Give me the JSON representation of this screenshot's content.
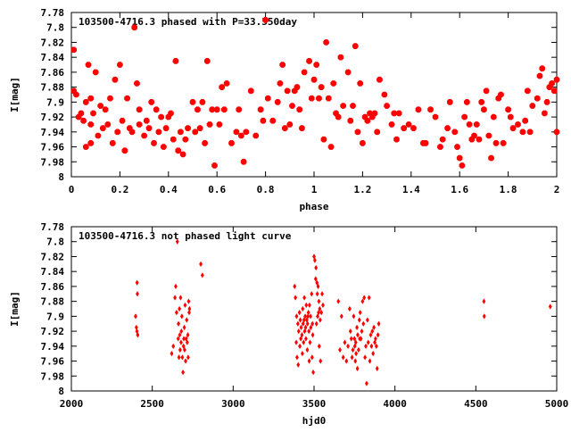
{
  "chart_data": [
    {
      "type": "scatter",
      "title": "103500-4716.3 phased with P=33.550day",
      "xlabel": "phase",
      "ylabel": "I[mag]",
      "xlim": [
        0,
        2
      ],
      "ylim": [
        8.0,
        7.78
      ],
      "y_inverted": true,
      "xticks": [
        "0",
        "0.2",
        "0.4",
        "0.6",
        "0.8",
        "1",
        "1.2",
        "1.4",
        "1.6",
        "1.8",
        "2"
      ],
      "yticks": [
        "7.78",
        "7.8",
        "7.82",
        "7.84",
        "7.86",
        "7.88",
        "7.9",
        "7.92",
        "7.94",
        "7.96",
        "7.98",
        "8"
      ],
      "marker_color": "#ff0000",
      "points": [
        [
          0.01,
          7.83
        ],
        [
          0.01,
          7.885
        ],
        [
          0.02,
          7.89
        ],
        [
          0.03,
          7.92
        ],
        [
          0.04,
          7.915
        ],
        [
          0.05,
          7.925
        ],
        [
          0.06,
          7.9
        ],
        [
          0.06,
          7.96
        ],
        [
          0.07,
          7.85
        ],
        [
          0.08,
          7.895
        ],
        [
          0.08,
          7.93
        ],
        [
          0.08,
          7.955
        ],
        [
          0.09,
          7.915
        ],
        [
          0.1,
          7.86
        ],
        [
          0.11,
          7.945
        ],
        [
          0.12,
          7.905
        ],
        [
          0.13,
          7.935
        ],
        [
          0.14,
          7.91
        ],
        [
          0.15,
          7.93
        ],
        [
          0.16,
          7.895
        ],
        [
          0.17,
          7.955
        ],
        [
          0.18,
          7.87
        ],
        [
          0.19,
          7.94
        ],
        [
          0.2,
          7.85
        ],
        [
          0.21,
          7.925
        ],
        [
          0.22,
          7.965
        ],
        [
          0.23,
          7.895
        ],
        [
          0.24,
          7.935
        ],
        [
          0.25,
          7.94
        ],
        [
          0.26,
          7.8
        ],
        [
          0.27,
          7.875
        ],
        [
          0.28,
          7.93
        ],
        [
          0.28,
          7.91
        ],
        [
          0.3,
          7.945
        ],
        [
          0.31,
          7.925
        ],
        [
          0.32,
          7.935
        ],
        [
          0.33,
          7.9
        ],
        [
          0.34,
          7.955
        ],
        [
          0.35,
          7.91
        ],
        [
          0.36,
          7.94
        ],
        [
          0.37,
          7.92
        ],
        [
          0.38,
          7.96
        ],
        [
          0.39,
          7.935
        ],
        [
          0.4,
          7.92
        ],
        [
          0.41,
          7.915
        ],
        [
          0.42,
          7.95
        ],
        [
          0.43,
          7.845
        ],
        [
          0.44,
          7.965
        ],
        [
          0.45,
          7.94
        ],
        [
          0.46,
          7.97
        ],
        [
          0.47,
          7.95
        ],
        [
          0.48,
          7.935
        ],
        [
          0.5,
          7.9
        ],
        [
          0.51,
          7.94
        ],
        [
          0.52,
          7.91
        ],
        [
          0.53,
          7.935
        ],
        [
          0.54,
          7.9
        ],
        [
          0.55,
          7.955
        ],
        [
          0.56,
          7.845
        ],
        [
          0.57,
          7.93
        ],
        [
          0.58,
          7.91
        ],
        [
          0.59,
          7.985
        ],
        [
          0.6,
          7.91
        ],
        [
          0.61,
          7.93
        ],
        [
          0.62,
          7.88
        ],
        [
          0.63,
          7.91
        ],
        [
          0.64,
          7.875
        ],
        [
          0.66,
          7.955
        ],
        [
          0.68,
          7.94
        ],
        [
          0.69,
          7.91
        ],
        [
          0.7,
          7.945
        ],
        [
          0.71,
          7.98
        ],
        [
          0.72,
          7.94
        ],
        [
          0.74,
          7.885
        ],
        [
          0.76,
          7.945
        ],
        [
          0.78,
          7.91
        ],
        [
          0.79,
          7.925
        ],
        [
          0.8,
          7.79
        ],
        [
          0.81,
          7.895
        ],
        [
          0.83,
          7.925
        ],
        [
          0.85,
          7.9
        ],
        [
          0.86,
          7.875
        ],
        [
          0.87,
          7.85
        ],
        [
          0.88,
          7.935
        ],
        [
          0.89,
          7.885
        ],
        [
          0.9,
          7.93
        ],
        [
          0.91,
          7.905
        ],
        [
          0.92,
          7.885
        ],
        [
          0.93,
          7.88
        ],
        [
          0.94,
          7.91
        ],
        [
          0.95,
          7.935
        ],
        [
          0.96,
          7.86
        ],
        [
          0.98,
          7.845
        ],
        [
          0.99,
          7.895
        ],
        [
          1.0,
          7.87
        ],
        [
          1.01,
          7.85
        ],
        [
          1.02,
          7.895
        ],
        [
          1.03,
          7.88
        ],
        [
          1.04,
          7.95
        ],
        [
          1.05,
          7.82
        ],
        [
          1.06,
          7.895
        ],
        [
          1.07,
          7.96
        ],
        [
          1.08,
          7.875
        ],
        [
          1.09,
          7.915
        ],
        [
          1.1,
          7.92
        ],
        [
          1.11,
          7.84
        ],
        [
          1.12,
          7.905
        ],
        [
          1.14,
          7.86
        ],
        [
          1.15,
          7.925
        ],
        [
          1.16,
          7.905
        ],
        [
          1.17,
          7.825
        ],
        [
          1.18,
          7.94
        ],
        [
          1.19,
          7.875
        ],
        [
          1.2,
          7.955
        ],
        [
          1.21,
          7.92
        ],
        [
          1.22,
          7.925
        ],
        [
          1.23,
          7.915
        ],
        [
          1.24,
          7.92
        ],
        [
          1.25,
          7.915
        ],
        [
          1.26,
          7.94
        ],
        [
          1.27,
          7.87
        ],
        [
          1.29,
          7.89
        ],
        [
          1.3,
          7.905
        ],
        [
          1.32,
          7.93
        ],
        [
          1.33,
          7.915
        ],
        [
          1.34,
          7.95
        ],
        [
          1.35,
          7.915
        ],
        [
          1.37,
          7.935
        ],
        [
          1.39,
          7.93
        ],
        [
          1.41,
          7.935
        ],
        [
          1.43,
          7.91
        ],
        [
          1.45,
          7.955
        ],
        [
          1.46,
          7.955
        ],
        [
          1.48,
          7.91
        ],
        [
          1.5,
          7.92
        ],
        [
          1.52,
          7.96
        ],
        [
          1.53,
          7.95
        ],
        [
          1.55,
          7.935
        ],
        [
          1.56,
          7.9
        ],
        [
          1.58,
          7.94
        ],
        [
          1.59,
          7.96
        ],
        [
          1.6,
          7.975
        ],
        [
          1.61,
          7.985
        ],
        [
          1.62,
          7.92
        ],
        [
          1.63,
          7.9
        ],
        [
          1.64,
          7.93
        ],
        [
          1.65,
          7.95
        ],
        [
          1.66,
          7.945
        ],
        [
          1.67,
          7.93
        ],
        [
          1.68,
          7.95
        ],
        [
          1.69,
          7.9
        ],
        [
          1.7,
          7.91
        ],
        [
          1.71,
          7.885
        ],
        [
          1.72,
          7.945
        ],
        [
          1.73,
          7.975
        ],
        [
          1.74,
          7.92
        ],
        [
          1.75,
          7.955
        ],
        [
          1.76,
          7.895
        ],
        [
          1.77,
          7.89
        ],
        [
          1.78,
          7.955
        ],
        [
          1.8,
          7.91
        ],
        [
          1.81,
          7.92
        ],
        [
          1.82,
          7.935
        ],
        [
          1.84,
          7.93
        ],
        [
          1.86,
          7.94
        ],
        [
          1.87,
          7.925
        ],
        [
          1.88,
          7.885
        ],
        [
          1.89,
          7.94
        ],
        [
          1.9,
          7.905
        ],
        [
          1.92,
          7.895
        ],
        [
          1.93,
          7.865
        ],
        [
          1.94,
          7.855
        ],
        [
          1.95,
          7.915
        ],
        [
          1.96,
          7.9
        ],
        [
          1.97,
          7.88
        ],
        [
          1.98,
          7.875
        ],
        [
          1.99,
          7.885
        ],
        [
          2.0,
          7.87
        ],
        [
          2.0,
          7.94
        ]
      ]
    },
    {
      "type": "scatter",
      "title": "103500-4716.3 not phased light curve",
      "xlabel": "hjd0",
      "ylabel": "I[mag]",
      "xlim": [
        2000,
        5000
      ],
      "ylim": [
        8.0,
        7.78
      ],
      "y_inverted": true,
      "xticks": [
        "2000",
        "2500",
        "3000",
        "3500",
        "4000",
        "4500",
        "5000"
      ],
      "yticks": [
        "7.78",
        "7.8",
        "7.82",
        "7.84",
        "7.86",
        "7.88",
        "7.9",
        "7.92",
        "7.94",
        "7.96",
        "7.98",
        "8"
      ],
      "marker_color": "#ff0000",
      "points": [
        [
          2397,
          7.9
        ],
        [
          2402,
          7.915
        ],
        [
          2405,
          7.92
        ],
        [
          2406,
          7.855
        ],
        [
          2408,
          7.87
        ],
        [
          2410,
          7.925
        ],
        [
          2620,
          7.95
        ],
        [
          2630,
          7.94
        ],
        [
          2640,
          7.875
        ],
        [
          2645,
          7.86
        ],
        [
          2650,
          7.895
        ],
        [
          2655,
          7.8
        ],
        [
          2660,
          7.93
        ],
        [
          2662,
          7.91
        ],
        [
          2665,
          7.955
        ],
        [
          2668,
          7.89
        ],
        [
          2670,
          7.925
        ],
        [
          2672,
          7.945
        ],
        [
          2675,
          7.875
        ],
        [
          2678,
          7.935
        ],
        [
          2680,
          7.92
        ],
        [
          2683,
          7.9
        ],
        [
          2686,
          7.955
        ],
        [
          2690,
          7.975
        ],
        [
          2693,
          7.94
        ],
        [
          2695,
          7.93
        ],
        [
          2698,
          7.915
        ],
        [
          2700,
          7.945
        ],
        [
          2703,
          7.885
        ],
        [
          2706,
          7.96
        ],
        [
          2710,
          7.93
        ],
        [
          2713,
          7.905
        ],
        [
          2716,
          7.935
        ],
        [
          2720,
          7.925
        ],
        [
          2722,
          7.955
        ],
        [
          2725,
          7.88
        ],
        [
          2728,
          7.895
        ],
        [
          2730,
          7.89
        ],
        [
          2800,
          7.83
        ],
        [
          2810,
          7.845
        ],
        [
          3380,
          7.86
        ],
        [
          3385,
          7.875
        ],
        [
          3390,
          7.935
        ],
        [
          3392,
          7.9
        ],
        [
          3395,
          7.955
        ],
        [
          3400,
          7.91
        ],
        [
          3402,
          7.965
        ],
        [
          3405,
          7.92
        ],
        [
          3410,
          7.895
        ],
        [
          3412,
          7.94
        ],
        [
          3415,
          7.905
        ],
        [
          3418,
          7.93
        ],
        [
          3420,
          7.915
        ],
        [
          3425,
          7.925
        ],
        [
          3428,
          7.95
        ],
        [
          3430,
          7.89
        ],
        [
          3432,
          7.91
        ],
        [
          3435,
          7.935
        ],
        [
          3438,
          7.905
        ],
        [
          3440,
          7.875
        ],
        [
          3442,
          7.92
        ],
        [
          3445,
          7.9
        ],
        [
          3448,
          7.915
        ],
        [
          3450,
          7.93
        ],
        [
          3452,
          7.885
        ],
        [
          3455,
          7.905
        ],
        [
          3458,
          7.945
        ],
        [
          3460,
          7.91
        ],
        [
          3462,
          7.9
        ],
        [
          3465,
          7.895
        ],
        [
          3468,
          7.92
        ],
        [
          3470,
          7.96
        ],
        [
          3472,
          7.885
        ],
        [
          3475,
          7.935
        ],
        [
          3478,
          7.9
        ],
        [
          3480,
          7.915
        ],
        [
          3485,
          7.87
        ],
        [
          3488,
          7.955
        ],
        [
          3490,
          7.91
        ],
        [
          3492,
          7.925
        ],
        [
          3495,
          7.975
        ],
        [
          3500,
          7.82
        ],
        [
          3505,
          7.825
        ],
        [
          3510,
          7.85
        ],
        [
          3512,
          7.835
        ],
        [
          3515,
          7.91
        ],
        [
          3518,
          7.855
        ],
        [
          3520,
          7.87
        ],
        [
          3522,
          7.9
        ],
        [
          3525,
          7.86
        ],
        [
          3528,
          7.895
        ],
        [
          3530,
          7.88
        ],
        [
          3532,
          7.94
        ],
        [
          3535,
          7.89
        ],
        [
          3538,
          7.905
        ],
        [
          3540,
          7.96
        ],
        [
          3545,
          7.895
        ],
        [
          3550,
          7.87
        ],
        [
          3555,
          7.885
        ],
        [
          3650,
          7.88
        ],
        [
          3660,
          7.945
        ],
        [
          3670,
          7.9
        ],
        [
          3680,
          7.955
        ],
        [
          3690,
          7.935
        ],
        [
          3700,
          7.96
        ],
        [
          3710,
          7.94
        ],
        [
          3720,
          7.89
        ],
        [
          3725,
          7.92
        ],
        [
          3730,
          7.93
        ],
        [
          3735,
          7.955
        ],
        [
          3740,
          7.945
        ],
        [
          3745,
          7.9
        ],
        [
          3750,
          7.93
        ],
        [
          3752,
          7.94
        ],
        [
          3755,
          7.96
        ],
        [
          3758,
          7.935
        ],
        [
          3760,
          7.95
        ],
        [
          3765,
          7.915
        ],
        [
          3768,
          7.97
        ],
        [
          3770,
          7.925
        ],
        [
          3775,
          7.945
        ],
        [
          3780,
          7.905
        ],
        [
          3782,
          7.93
        ],
        [
          3785,
          7.895
        ],
        [
          3790,
          7.93
        ],
        [
          3795,
          7.92
        ],
        [
          3800,
          7.88
        ],
        [
          3805,
          7.91
        ],
        [
          3810,
          7.875
        ],
        [
          3815,
          7.955
        ],
        [
          3820,
          7.94
        ],
        [
          3825,
          7.99
        ],
        [
          3830,
          7.905
        ],
        [
          3835,
          7.935
        ],
        [
          3840,
          7.875
        ],
        [
          3845,
          7.96
        ],
        [
          3850,
          7.925
        ],
        [
          3855,
          7.94
        ],
        [
          3860,
          7.92
        ],
        [
          3865,
          7.95
        ],
        [
          3870,
          7.915
        ],
        [
          3875,
          7.935
        ],
        [
          3880,
          7.93
        ],
        [
          3885,
          7.94
        ],
        [
          3890,
          7.97
        ],
        [
          3895,
          7.925
        ],
        [
          3900,
          7.91
        ],
        [
          4550,
          7.88
        ],
        [
          4552,
          7.9
        ],
        [
          4960,
          7.887
        ]
      ]
    }
  ]
}
